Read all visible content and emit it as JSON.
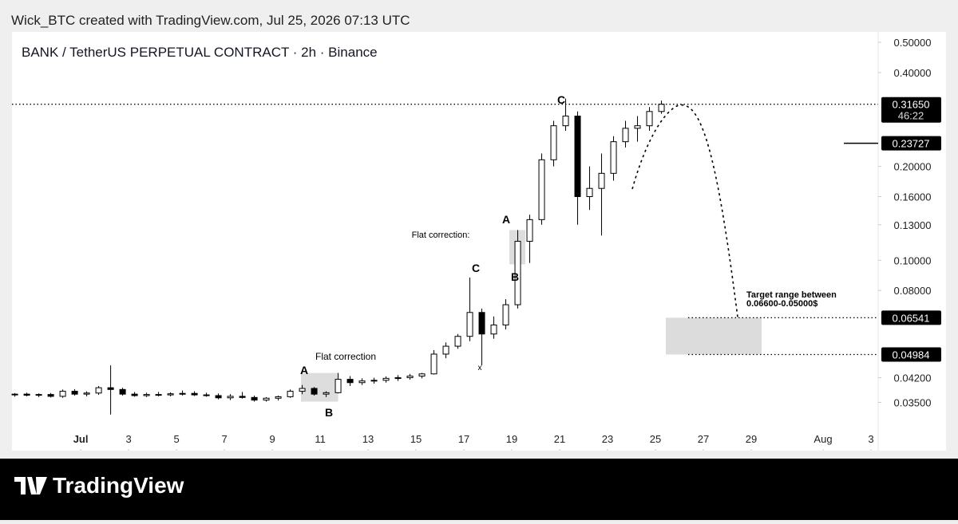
{
  "header": "Wick_BTC created with TradingView.com, Jul 25, 2026 07:13 UTC",
  "logo": "TradingView",
  "chart_data": {
    "type": "candlestick",
    "title": "BANK / TetherUS PERPETUAL CONTRACT · 2h · Binance",
    "log_scale": true,
    "x": [
      -1.75,
      -1.25,
      -0.75,
      -0.25,
      0.25,
      0.75,
      1.25,
      1.75,
      2.25,
      2.75,
      3.25,
      3.75,
      4.25,
      4.75,
      5.25,
      5.75,
      6.25,
      6.75,
      7.25,
      7.75,
      8.25,
      8.75,
      9.25,
      9.75,
      10.25,
      10.75,
      11.25,
      11.75,
      12.25,
      12.75,
      13.25,
      13.75,
      14.25,
      14.75,
      15.25,
      15.75,
      16.25,
      16.75,
      17.25,
      17.75,
      18.25,
      18.75,
      19.25,
      19.75,
      20.25,
      20.75,
      21.25,
      21.75,
      22.25,
      22.75,
      23.25,
      23.75,
      24.25,
      24.75,
      25.25
    ],
    "open": [
      0.037,
      0.0372,
      0.0369,
      0.0371,
      0.0366,
      0.038,
      0.0372,
      0.0375,
      0.039,
      0.0385,
      0.0372,
      0.0368,
      0.0371,
      0.037,
      0.0373,
      0.0374,
      0.037,
      0.0368,
      0.0362,
      0.0366,
      0.0363,
      0.0356,
      0.0361,
      0.0365,
      0.038,
      0.0388,
      0.0372,
      0.0376,
      0.0415,
      0.0405,
      0.041,
      0.0412,
      0.0418,
      0.042,
      0.0425,
      0.0432,
      0.05,
      0.053,
      0.057,
      0.068,
      0.058,
      0.062,
      0.072,
      0.115,
      0.135,
      0.21,
      0.27,
      0.29,
      0.16,
      0.17,
      0.19,
      0.24,
      0.265,
      0.27,
      0.3
    ],
    "high": [
      0.0375,
      0.0376,
      0.0374,
      0.0375,
      0.0385,
      0.0386,
      0.038,
      0.0395,
      0.046,
      0.039,
      0.0378,
      0.0376,
      0.0378,
      0.0377,
      0.0382,
      0.038,
      0.0376,
      0.0374,
      0.0372,
      0.0378,
      0.0368,
      0.0364,
      0.0368,
      0.0385,
      0.0398,
      0.0392,
      0.038,
      0.0435,
      0.0425,
      0.0418,
      0.042,
      0.0424,
      0.0428,
      0.0432,
      0.0435,
      0.0515,
      0.0545,
      0.058,
      0.088,
      0.07,
      0.066,
      0.075,
      0.125,
      0.14,
      0.22,
      0.28,
      0.33,
      0.3,
      0.2,
      0.22,
      0.25,
      0.28,
      0.29,
      0.31,
      0.325
    ],
    "low": [
      0.0365,
      0.0366,
      0.0364,
      0.0363,
      0.0362,
      0.0368,
      0.0366,
      0.037,
      0.032,
      0.0368,
      0.0365,
      0.0364,
      0.0366,
      0.0366,
      0.0368,
      0.0367,
      0.0365,
      0.0358,
      0.0356,
      0.036,
      0.0352,
      0.0352,
      0.0355,
      0.0362,
      0.0372,
      0.0368,
      0.0364,
      0.0374,
      0.0395,
      0.0398,
      0.0402,
      0.0405,
      0.041,
      0.0414,
      0.0418,
      0.043,
      0.0485,
      0.052,
      0.055,
      0.046,
      0.056,
      0.06,
      0.07,
      0.098,
      0.13,
      0.2,
      0.26,
      0.13,
      0.145,
      0.12,
      0.18,
      0.23,
      0.24,
      0.26,
      0.295
    ],
    "close": [
      0.0372,
      0.0369,
      0.0371,
      0.0366,
      0.038,
      0.0372,
      0.0375,
      0.039,
      0.0385,
      0.0372,
      0.0368,
      0.0371,
      0.037,
      0.0373,
      0.0374,
      0.037,
      0.0368,
      0.0362,
      0.0366,
      0.0363,
      0.0356,
      0.0361,
      0.0365,
      0.038,
      0.0388,
      0.0372,
      0.0376,
      0.0415,
      0.0405,
      0.041,
      0.0412,
      0.0418,
      0.042,
      0.0425,
      0.0432,
      0.05,
      0.053,
      0.057,
      0.068,
      0.058,
      0.062,
      0.072,
      0.115,
      0.135,
      0.21,
      0.27,
      0.29,
      0.16,
      0.17,
      0.19,
      0.24,
      0.265,
      0.27,
      0.3,
      0.3165
    ],
    "xlim": [
      -1.87,
      34.3
    ],
    "xticks": [
      {
        "value": 1,
        "label": "Jul"
      },
      3,
      5,
      7,
      9,
      11,
      13,
      15,
      17,
      19,
      21,
      23,
      25,
      27,
      29,
      {
        "value": 32,
        "label": "Aug"
      },
      {
        "value": 34,
        "label": "3"
      }
    ],
    "ylim": [
      0.0248,
      0.54
    ],
    "yticks": [
      {
        "value": 0.5,
        "label": "0.50000"
      },
      {
        "value": 0.4,
        "label": "0.40000"
      },
      {
        "value": 0.2,
        "label": "0.20000"
      },
      {
        "value": 0.16,
        "label": "0.16000"
      },
      {
        "value": 0.13,
        "label": "0.13000"
      },
      {
        "value": 0.1,
        "label": "0.10000"
      },
      {
        "value": 0.08,
        "label": "0.08000"
      },
      {
        "value": 0.042,
        "label": "0.04200"
      },
      {
        "value": 0.035,
        "label": "0.03500"
      }
    ],
    "price_lines": [
      {
        "value": 0.3165,
        "label": "0.31650",
        "style": "dotted",
        "countdown": "46:22"
      },
      {
        "value": 0.23727,
        "label": "0.23727",
        "style": "solid"
      },
      {
        "value": 0.06541,
        "label": "0.06541",
        "style": "dotted"
      },
      {
        "value": 0.04984,
        "label": "0.04984",
        "style": "dotted"
      }
    ],
    "annotations": [
      "C",
      "Flat correction:",
      "A",
      "B",
      "C",
      "Flat correction",
      "A",
      "B",
      "x",
      "Target range between",
      "0.06600-0.05000$"
    ]
  }
}
